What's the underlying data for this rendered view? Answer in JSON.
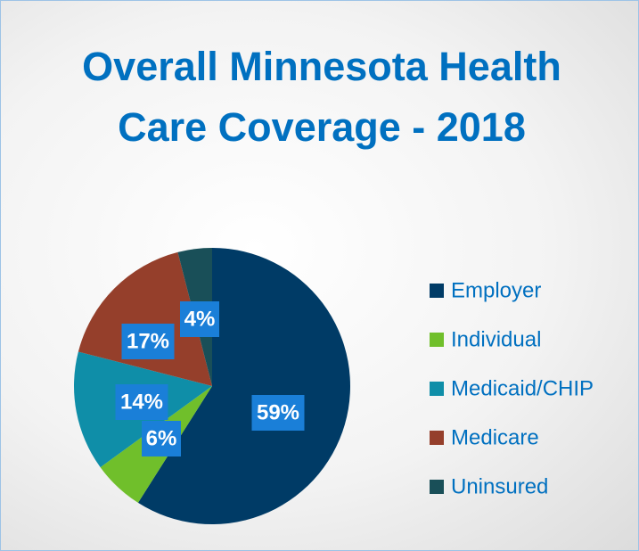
{
  "chart_data": {
    "type": "pie",
    "title": "Overall Minnesota Health Care Coverage - 2018",
    "categories": [
      "Employer",
      "Individual",
      "Medicaid/CHIP",
      "Medicare",
      "Uninsured"
    ],
    "values": [
      59,
      6,
      14,
      17,
      4
    ],
    "value_labels": [
      "59%",
      "6%",
      "14%",
      "17%",
      "4%"
    ],
    "colors": [
      "#003b66",
      "#70bf2b",
      "#0f8ea8",
      "#953f2b",
      "#194f58"
    ],
    "legend": "right"
  }
}
